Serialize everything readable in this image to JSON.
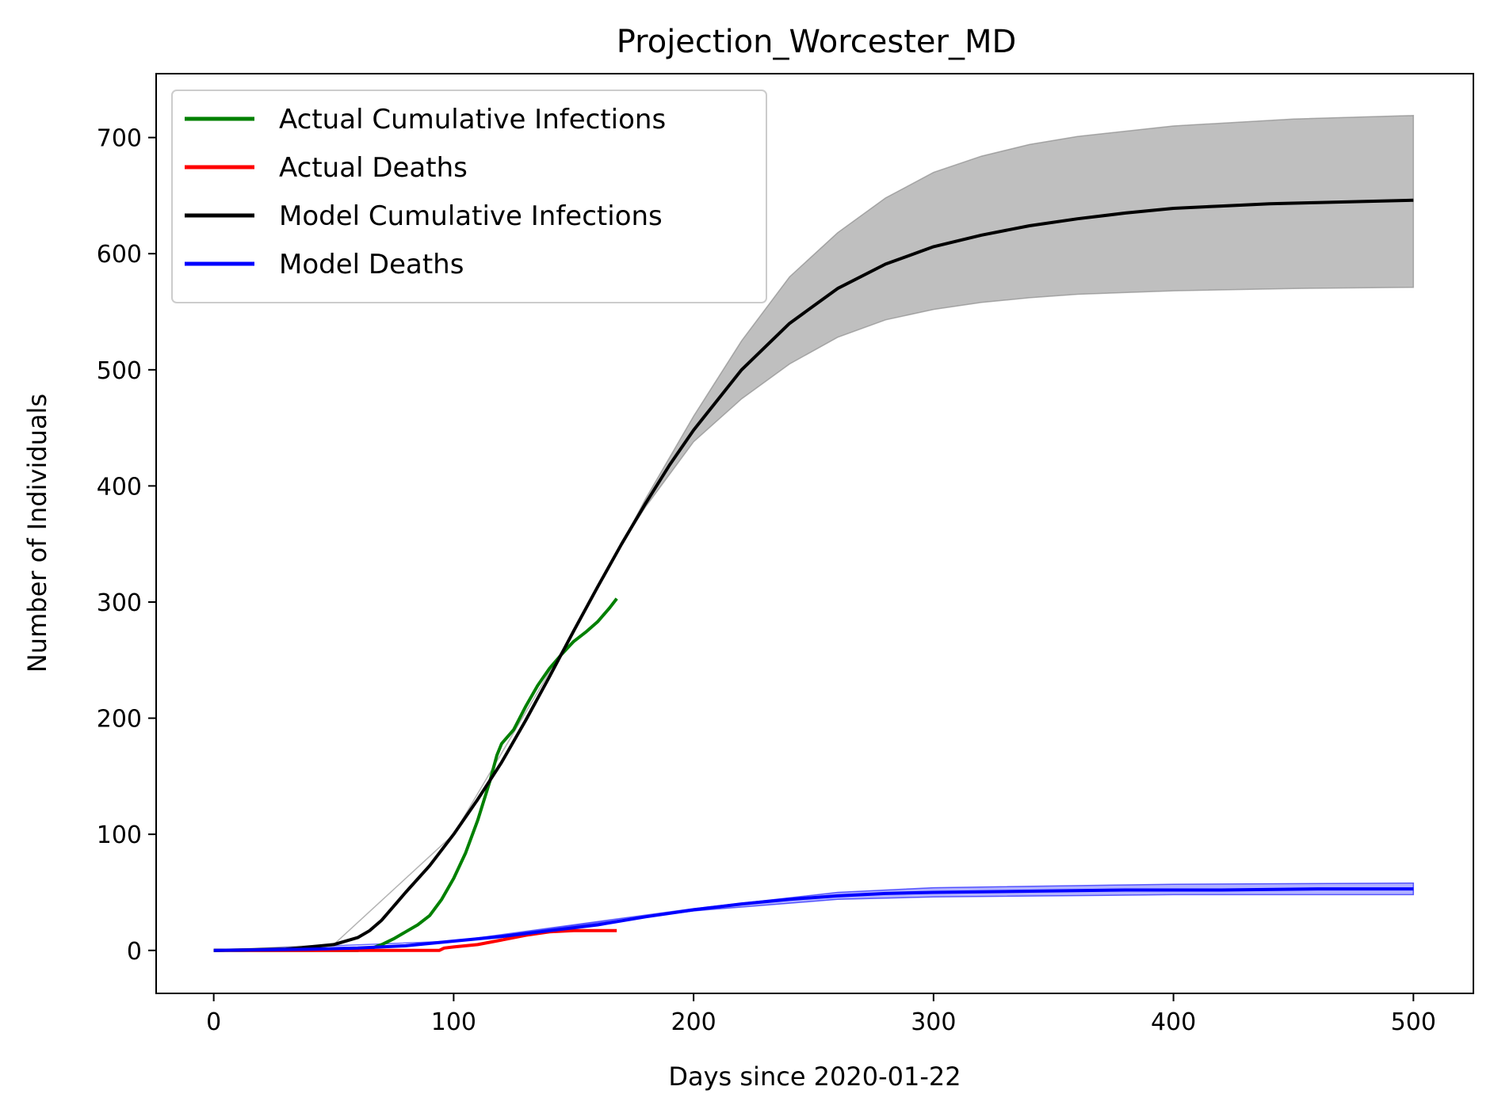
{
  "chart_data": {
    "type": "line",
    "title": "Projection_Worcester_MD",
    "xlabel": "Days since 2020-01-22",
    "ylabel": "Number of Individuals",
    "xlim": [
      -24,
      525
    ],
    "ylim": [
      -37,
      755
    ],
    "x_ticks": [
      0,
      100,
      200,
      300,
      400,
      500
    ],
    "y_ticks": [
      0,
      100,
      200,
      300,
      400,
      500,
      600,
      700
    ],
    "grid": false,
    "legend_position": "top-left",
    "series": [
      {
        "name": "Actual Cumulative Infections",
        "color": "#008000",
        "points": [
          [
            0,
            0
          ],
          [
            60,
            0
          ],
          [
            66,
            2
          ],
          [
            70,
            5
          ],
          [
            75,
            10
          ],
          [
            80,
            16
          ],
          [
            85,
            22
          ],
          [
            90,
            30
          ],
          [
            95,
            44
          ],
          [
            100,
            62
          ],
          [
            105,
            84
          ],
          [
            110,
            112
          ],
          [
            115,
            145
          ],
          [
            118,
            168
          ],
          [
            120,
            178
          ],
          [
            125,
            190
          ],
          [
            130,
            210
          ],
          [
            135,
            228
          ],
          [
            140,
            243
          ],
          [
            145,
            255
          ],
          [
            150,
            266
          ],
          [
            155,
            274
          ],
          [
            160,
            283
          ],
          [
            165,
            295
          ],
          [
            168,
            303
          ]
        ]
      },
      {
        "name": "Actual Deaths",
        "color": "#ff0000",
        "points": [
          [
            0,
            0
          ],
          [
            80,
            0
          ],
          [
            94,
            0
          ],
          [
            96,
            2
          ],
          [
            100,
            3
          ],
          [
            110,
            5
          ],
          [
            120,
            9
          ],
          [
            130,
            13
          ],
          [
            140,
            16
          ],
          [
            150,
            17
          ],
          [
            160,
            17
          ],
          [
            168,
            17
          ]
        ]
      },
      {
        "name": "Model Cumulative Infections",
        "color": "#000000",
        "points": [
          [
            0,
            0
          ],
          [
            30,
            1
          ],
          [
            50,
            5
          ],
          [
            60,
            11
          ],
          [
            65,
            17
          ],
          [
            70,
            26
          ],
          [
            75,
            38
          ],
          [
            80,
            50
          ],
          [
            90,
            73
          ],
          [
            100,
            100
          ],
          [
            110,
            130
          ],
          [
            120,
            162
          ],
          [
            130,
            198
          ],
          [
            140,
            236
          ],
          [
            150,
            275
          ],
          [
            160,
            313
          ],
          [
            170,
            350
          ],
          [
            180,
            385
          ],
          [
            190,
            418
          ],
          [
            200,
            448
          ],
          [
            220,
            500
          ],
          [
            240,
            540
          ],
          [
            260,
            570
          ],
          [
            280,
            591
          ],
          [
            300,
            606
          ],
          [
            320,
            616
          ],
          [
            340,
            624
          ],
          [
            360,
            630
          ],
          [
            380,
            635
          ],
          [
            400,
            639
          ],
          [
            420,
            641
          ],
          [
            440,
            643
          ],
          [
            460,
            644
          ],
          [
            480,
            645
          ],
          [
            500,
            646
          ]
        ]
      },
      {
        "name": "Model Deaths",
        "color": "#0000ff",
        "points": [
          [
            0,
            0
          ],
          [
            40,
            1
          ],
          [
            60,
            2
          ],
          [
            80,
            4
          ],
          [
            100,
            8
          ],
          [
            120,
            12
          ],
          [
            140,
            17
          ],
          [
            160,
            22
          ],
          [
            180,
            29
          ],
          [
            200,
            35
          ],
          [
            220,
            40
          ],
          [
            240,
            44
          ],
          [
            260,
            47
          ],
          [
            280,
            49
          ],
          [
            300,
            50
          ],
          [
            340,
            51
          ],
          [
            380,
            52
          ],
          [
            420,
            52
          ],
          [
            460,
            53
          ],
          [
            500,
            53
          ]
        ]
      }
    ],
    "bands": [
      {
        "of": "Model Cumulative Infections",
        "color": "#808080",
        "lower": [
          [
            0,
            0
          ],
          [
            50,
            5
          ],
          [
            100,
            100
          ],
          [
            150,
            275
          ],
          [
            170,
            350
          ],
          [
            180,
            382
          ],
          [
            200,
            438
          ],
          [
            220,
            475
          ],
          [
            240,
            505
          ],
          [
            260,
            528
          ],
          [
            280,
            543
          ],
          [
            300,
            552
          ],
          [
            320,
            558
          ],
          [
            340,
            562
          ],
          [
            360,
            565
          ],
          [
            400,
            568
          ],
          [
            450,
            570
          ],
          [
            500,
            571
          ]
        ],
        "upper": [
          [
            0,
            0
          ],
          [
            50,
            5
          ],
          [
            100,
            100
          ],
          [
            150,
            275
          ],
          [
            170,
            350
          ],
          [
            180,
            389
          ],
          [
            200,
            460
          ],
          [
            220,
            525
          ],
          [
            240,
            580
          ],
          [
            260,
            618
          ],
          [
            280,
            648
          ],
          [
            300,
            670
          ],
          [
            320,
            684
          ],
          [
            340,
            694
          ],
          [
            360,
            701
          ],
          [
            400,
            710
          ],
          [
            450,
            716
          ],
          [
            500,
            719
          ]
        ]
      },
      {
        "of": "Model Deaths",
        "color": "#0000ff",
        "lower": [
          [
            0,
            0
          ],
          [
            100,
            8
          ],
          [
            200,
            34
          ],
          [
            260,
            44
          ],
          [
            300,
            46
          ],
          [
            400,
            48
          ],
          [
            500,
            48
          ]
        ],
        "upper": [
          [
            0,
            0
          ],
          [
            100,
            8
          ],
          [
            200,
            36
          ],
          [
            260,
            50
          ],
          [
            300,
            54
          ],
          [
            400,
            57
          ],
          [
            500,
            58
          ]
        ]
      }
    ]
  }
}
